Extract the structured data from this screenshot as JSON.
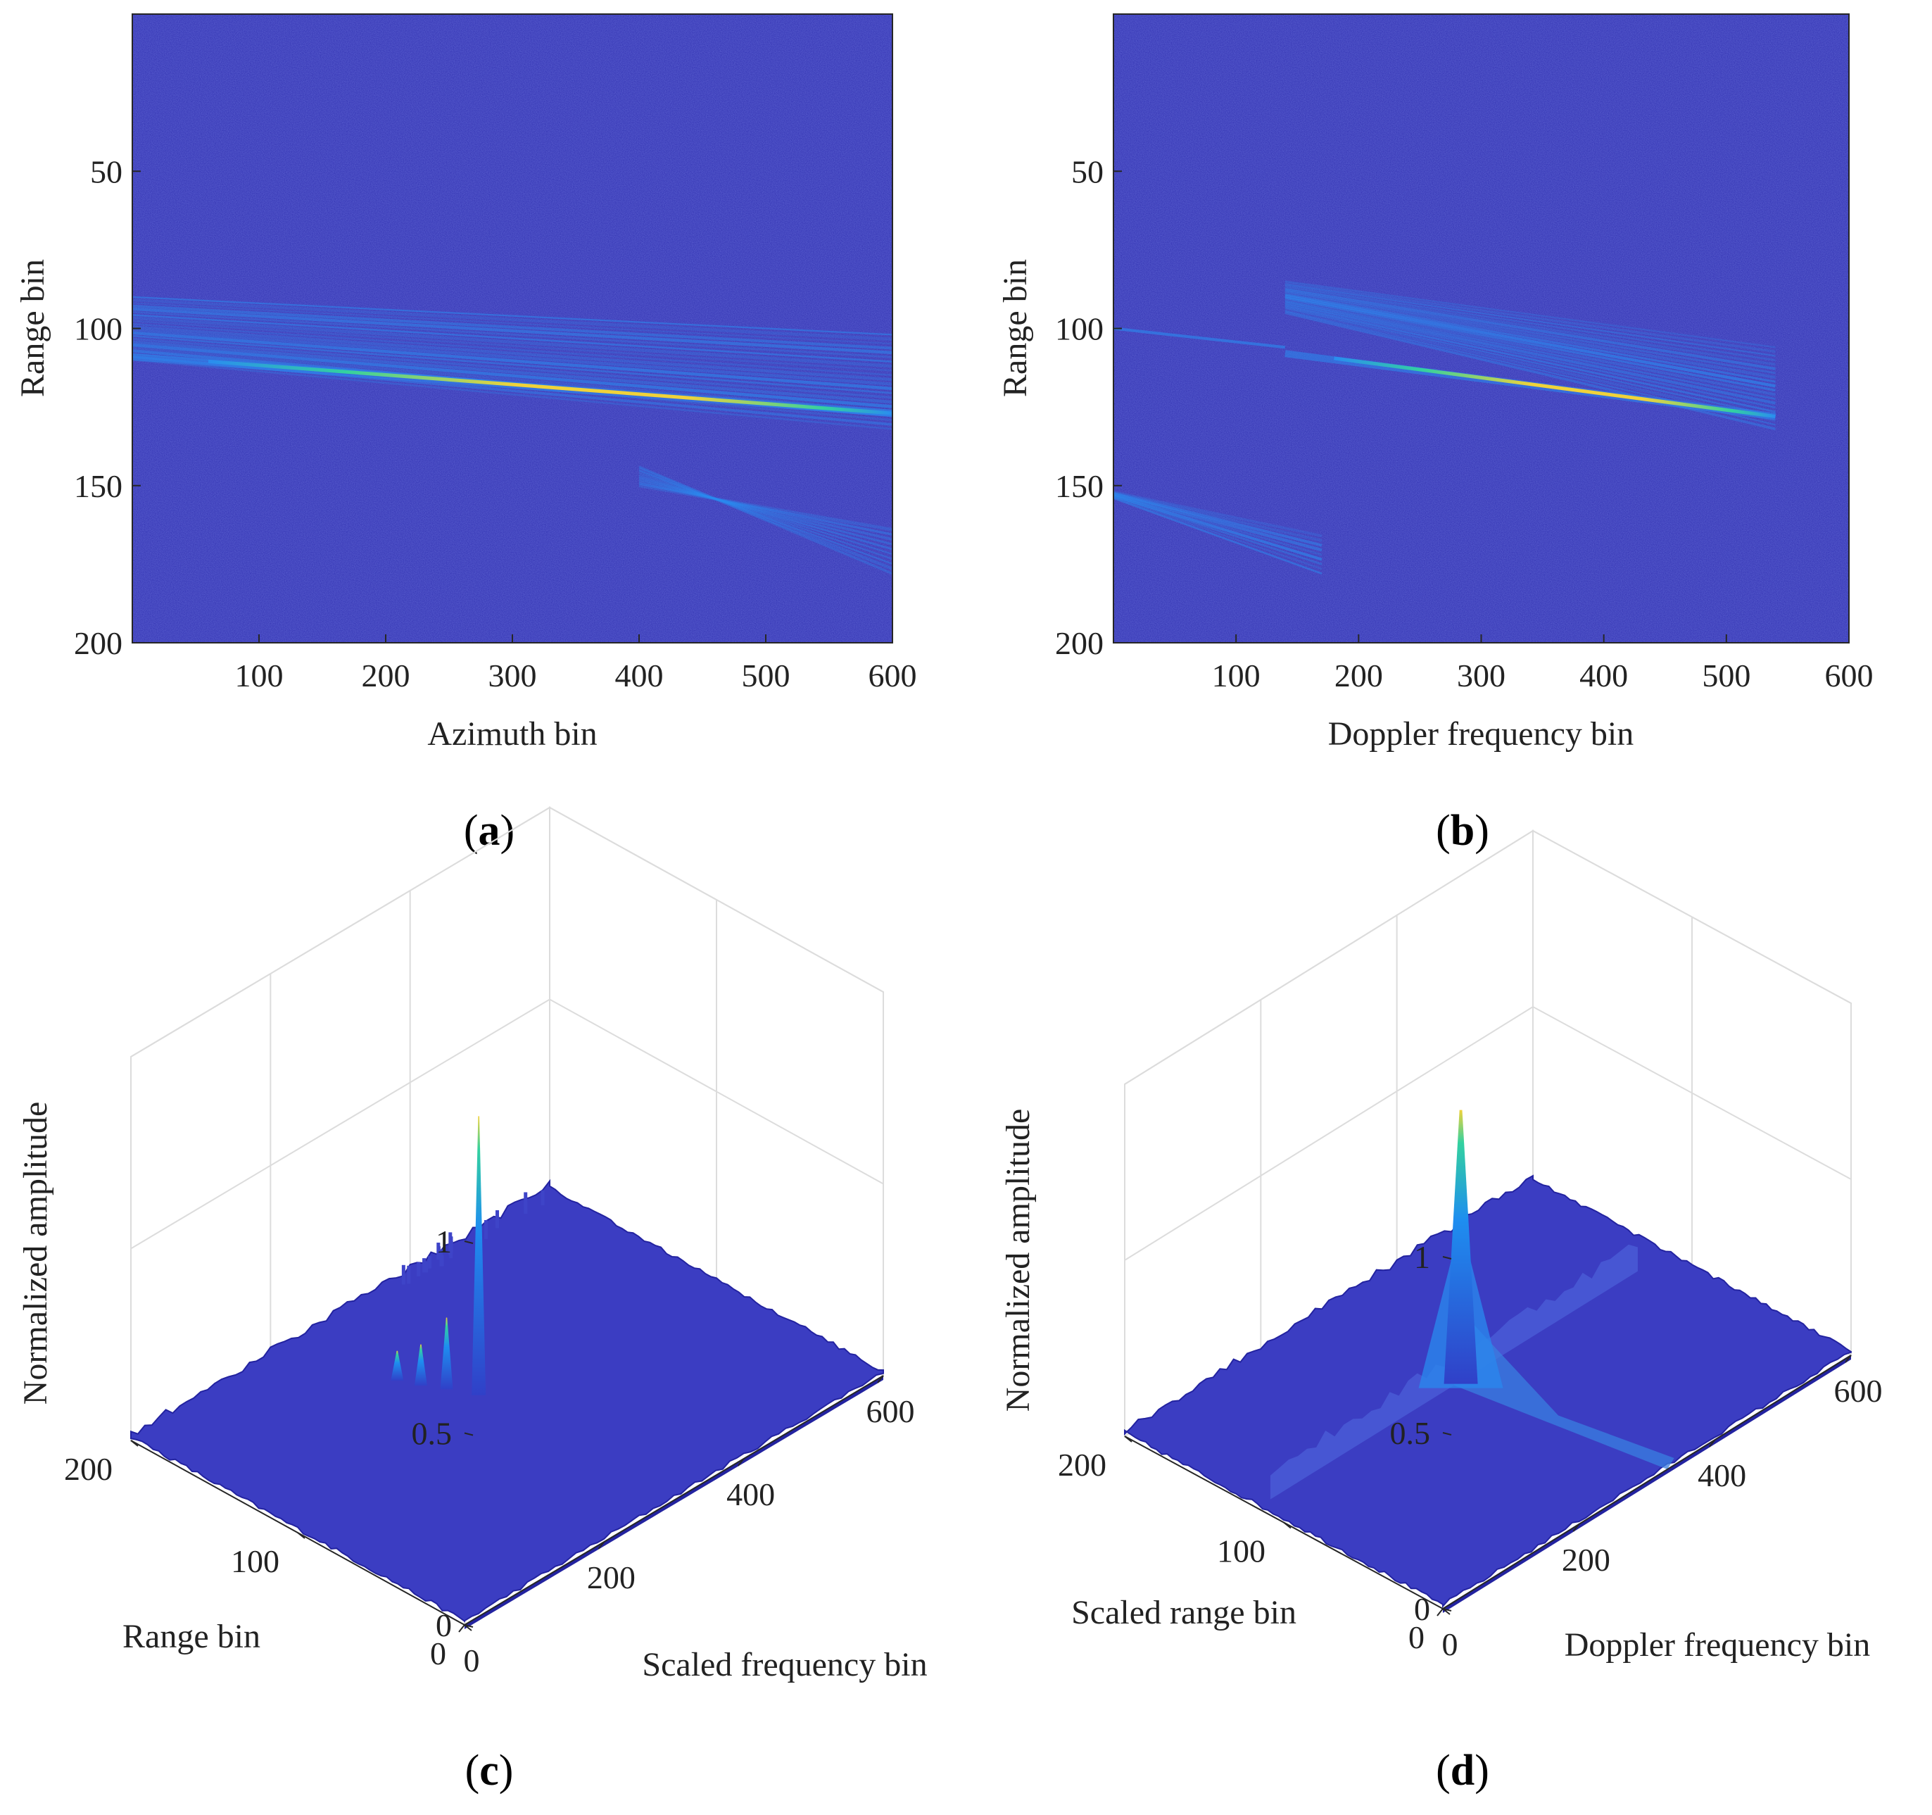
{
  "figure": {
    "captions": {
      "a_pre": "(",
      "a": "a",
      "a_post": ")",
      "b_pre": "(",
      "b": "b",
      "b_post": ")",
      "c_pre": "(",
      "c": "c",
      "c_post": ")",
      "d_pre": "(",
      "d": "d",
      "d_post": ")"
    }
  },
  "colors": {
    "background": "#2f2fb0",
    "noise_light": "#3a44c8",
    "stripe": "#2a8cf0",
    "line_peak": "#f0d23a",
    "line_mid": "#33d1a0",
    "surface": "#3b3dc2",
    "surface_edge": "#2323a0",
    "spike": "#1e8ef0",
    "grid": "#dcdcdc",
    "axis": "#262626"
  },
  "chart_data": [
    {
      "id": "a",
      "type": "heatmap",
      "xlabel": "Azimuth bin",
      "ylabel": "Range bin",
      "xlim": [
        0,
        600
      ],
      "ylim": [
        200,
        0
      ],
      "xticks": [
        100,
        200,
        300,
        400,
        500,
        600
      ],
      "xtick_labels": [
        "100",
        "200",
        "300",
        "400",
        "500",
        "600"
      ],
      "yticks": [
        50,
        100,
        150,
        200
      ],
      "ytick_labels": [
        "50",
        "100",
        "150",
        "200"
      ],
      "bright_line": {
        "x": [
          0,
          600
        ],
        "range": [
          109,
          127
        ]
      },
      "stripe_band": {
        "x": [
          0,
          600
        ],
        "range_start": [
          90,
          100
        ],
        "range_end": [
          128,
          132
        ]
      },
      "lower_stripes": {
        "x": [
          400,
          600
        ],
        "range": [
          150,
          178
        ]
      }
    },
    {
      "id": "b",
      "type": "heatmap",
      "xlabel": "Doppler frequency bin",
      "ylabel": "Range bin",
      "xlim": [
        0,
        600
      ],
      "ylim": [
        200,
        0
      ],
      "xticks": [
        100,
        200,
        300,
        400,
        500,
        600
      ],
      "xtick_labels": [
        "100",
        "200",
        "300",
        "400",
        "500",
        "600"
      ],
      "yticks": [
        50,
        100,
        150,
        200
      ],
      "ytick_labels": [
        "50",
        "100",
        "150",
        "200"
      ],
      "faint_line": {
        "x": [
          0,
          140
        ],
        "range": [
          100,
          106
        ]
      },
      "bright_line": {
        "x": [
          140,
          540
        ],
        "range": [
          108,
          128
        ]
      },
      "stripe_block": {
        "x": [
          140,
          540
        ],
        "range": [
          85,
          132
        ]
      },
      "lower_left_stripes": {
        "x": [
          0,
          170
        ],
        "range": [
          152,
          178
        ]
      }
    },
    {
      "id": "c",
      "type": "surface3d",
      "xlabel": "Scaled frequency bin",
      "ylabel": "Range bin",
      "zlabel": "Normalized amplitude",
      "xlim": [
        0,
        600
      ],
      "ylim": [
        0,
        200
      ],
      "zlim": [
        0,
        1
      ],
      "xticks": [
        0,
        200,
        400,
        600
      ],
      "xtick_labels": [
        "0",
        "200",
        "400",
        "600"
      ],
      "yticks": [
        0,
        100,
        200
      ],
      "ytick_labels": [
        "0",
        "100",
        "200"
      ],
      "zticks": [
        0,
        0.5,
        1
      ],
      "ztick_labels": [
        "0",
        "0.5",
        "1"
      ],
      "main_peak": {
        "x": 300,
        "y": 117,
        "amplitude": 0.72
      },
      "side_peaks": [
        {
          "x": 285,
          "y": 130,
          "amplitude": 0.18
        },
        {
          "x": 272,
          "y": 140,
          "amplitude": 0.1
        },
        {
          "x": 262,
          "y": 150,
          "amplitude": 0.07
        }
      ]
    },
    {
      "id": "d",
      "type": "surface3d",
      "xlabel": "Doppler frequency bin",
      "ylabel": "Scaled range bin",
      "zlabel": "Normalized amplitude",
      "xlim": [
        0,
        600
      ],
      "ylim": [
        0,
        200
      ],
      "zlim": [
        0,
        1
      ],
      "xticks": [
        0,
        200,
        400,
        600
      ],
      "xtick_labels": [
        "0",
        "200",
        "400",
        "600"
      ],
      "yticks": [
        0,
        100,
        200
      ],
      "ytick_labels": [
        "0",
        "100",
        "200"
      ],
      "zticks": [
        0,
        0.5,
        1
      ],
      "ztick_labels": [
        "0",
        "0.5",
        "1"
      ],
      "main_peak": {
        "x": 300,
        "y": 117,
        "amplitude": 0.77
      },
      "ridge": {
        "y": 117,
        "x": [
          20,
          560
        ],
        "amplitude": 0.1
      }
    }
  ]
}
